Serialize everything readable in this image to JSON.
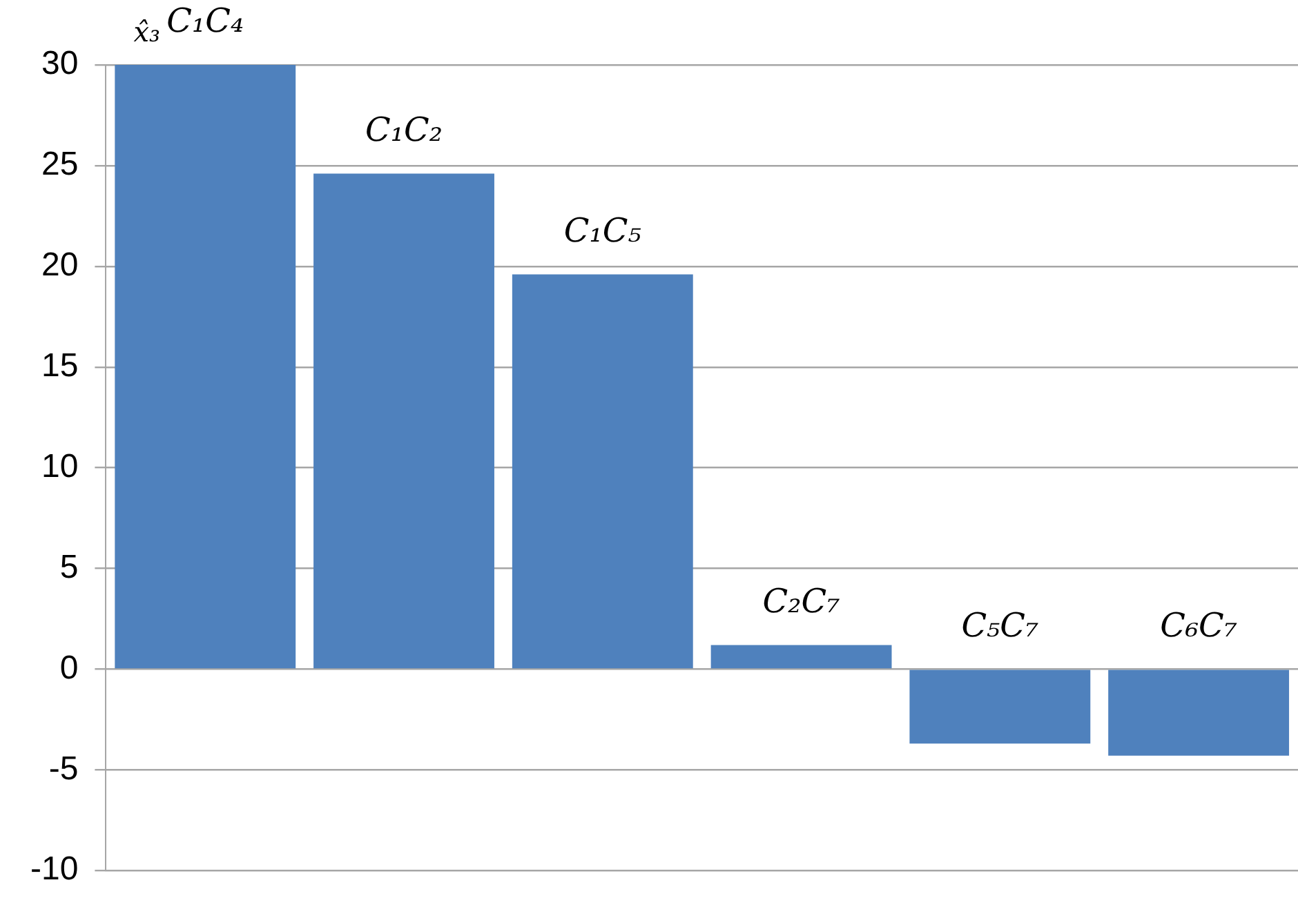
{
  "chart_data": {
    "type": "bar",
    "ylabel": "x̂₃",
    "categories": [
      "C₁C₄",
      "C₁C₂",
      "C₁C₅",
      "C₂C₇",
      "C₅C₇",
      "C₆C₇"
    ],
    "values": [
      30,
      24.6,
      19.6,
      1.2,
      -3.7,
      -4.3
    ],
    "color": "#4f81bd",
    "ylim": [
      -10,
      30
    ],
    "yticks": [
      -10,
      -5,
      0,
      5,
      10,
      15,
      20,
      25,
      30
    ],
    "grid": "y",
    "legend": false
  }
}
